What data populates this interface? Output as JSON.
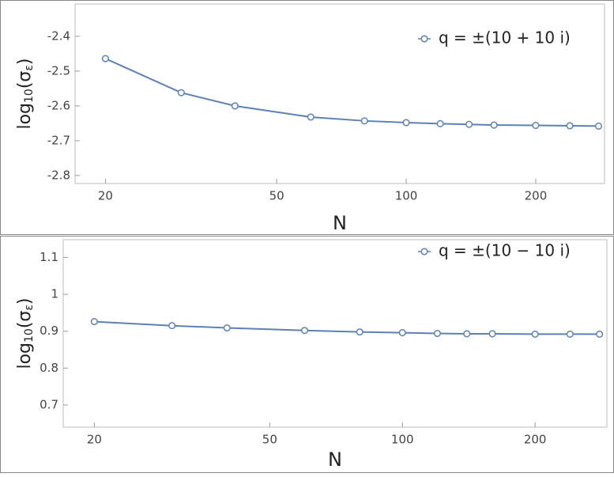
{
  "chart_data": [
    {
      "type": "line",
      "x_label": "N",
      "y_label": [
        "log",
        "10",
        "(σ",
        "ε",
        ")"
      ],
      "log_x": true,
      "x": [
        20,
        30,
        40,
        60,
        80,
        100,
        120,
        140,
        160,
        200,
        240,
        280
      ],
      "series": [
        {
          "name": "q = ±(10 + 10 i)",
          "color": "#5e81b5",
          "values": [
            -2.464,
            -2.562,
            -2.6,
            -2.632,
            -2.643,
            -2.648,
            -2.651,
            -2.653,
            -2.655,
            -2.656,
            -2.657,
            -2.658
          ]
        }
      ],
      "xlim": [
        17,
        289
      ],
      "xticks": [
        20,
        50,
        100,
        200
      ],
      "ylim": [
        -2.823,
        -2.307
      ],
      "yticks": [
        -2.8,
        -2.7,
        -2.6,
        -2.5,
        -2.4
      ],
      "legend": "upper right"
    },
    {
      "type": "line",
      "x_label": "N",
      "y_label": [
        "log",
        "10",
        "(σ",
        "ε",
        ")"
      ],
      "log_x": true,
      "x": [
        20,
        30,
        40,
        60,
        80,
        100,
        120,
        140,
        160,
        200,
        240,
        280
      ],
      "series": [
        {
          "name": "q = ±(10 − 10 i)",
          "color": "#5e81b5",
          "values": [
            0.926,
            0.915,
            0.909,
            0.902,
            0.898,
            0.896,
            0.894,
            0.893,
            0.893,
            0.892,
            0.892,
            0.892
          ]
        }
      ],
      "xlim": [
        17,
        291
      ],
      "xticks": [
        20,
        50,
        100,
        200
      ],
      "ylim": [
        0.64,
        1.148
      ],
      "yticks": [
        0.7,
        0.8,
        0.9,
        1.0,
        1.1
      ],
      "legend": "upper right"
    }
  ]
}
